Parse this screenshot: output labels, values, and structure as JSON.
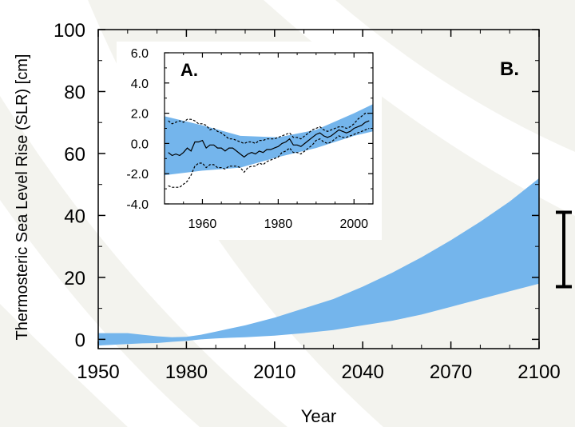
{
  "chart_data": [
    {
      "type": "area",
      "panel_label": "B.",
      "xlabel": "Year",
      "ylabel": "Thermosteric Sea Level Rise (SLR) [cm]",
      "xlim": [
        1950,
        2100
      ],
      "ylim": [
        -3,
        100
      ],
      "x_ticks": [
        1950,
        1980,
        2010,
        2040,
        2070,
        2100
      ],
      "y_ticks": [
        0,
        20,
        40,
        60,
        80,
        100
      ],
      "band_color": "#74b5ec",
      "band": {
        "x": [
          1950,
          1960,
          1965,
          1970,
          1975,
          1980,
          1985,
          1990,
          1995,
          2000,
          2010,
          2020,
          2030,
          2040,
          2050,
          2060,
          2070,
          2080,
          2090,
          2100
        ],
        "upper": [
          2,
          2,
          1.5,
          1,
          0.7,
          0.8,
          1.5,
          2.5,
          3.5,
          4.5,
          7,
          10,
          13,
          17,
          21.5,
          26.5,
          32,
          38,
          44.5,
          52
        ],
        "lower": [
          -2,
          -1.5,
          -1.3,
          -1.2,
          -0.8,
          -0.5,
          0,
          0.3,
          0.5,
          0.7,
          1.2,
          2,
          3,
          4.5,
          6,
          8,
          10.5,
          13,
          15.5,
          18
        ]
      },
      "error_bar": {
        "low": 17,
        "high": 41
      }
    },
    {
      "type": "line",
      "panel_label": "A.",
      "xlim": [
        1950,
        2005
      ],
      "ylim": [
        -4,
        6
      ],
      "x_ticks": [
        1960,
        1980,
        2000
      ],
      "y_ticks": [
        "6.0",
        "4.0",
        "2.0",
        "0.0",
        "-2.0",
        "-4.0"
      ],
      "band_color": "#74b5ec",
      "band": {
        "x": [
          1950,
          1960,
          1970,
          1980,
          1990,
          2000,
          2005
        ],
        "upper": [
          1.8,
          1.2,
          0.5,
          0.4,
          0.9,
          2.0,
          2.6
        ],
        "lower": [
          -2.1,
          -1.8,
          -1.6,
          -0.9,
          -0.3,
          0.5,
          0.8
        ]
      },
      "series": [
        {
          "style": "solid",
          "x": [
            1951,
            1952,
            1953,
            1954,
            1955,
            1956,
            1957,
            1958,
            1959,
            1960,
            1961,
            1962,
            1963,
            1964,
            1965,
            1966,
            1967,
            1968,
            1969,
            1970,
            1971,
            1972,
            1973,
            1974,
            1975,
            1976,
            1977,
            1978,
            1979,
            1980,
            1981,
            1982,
            1983,
            1984,
            1985,
            1986,
            1987,
            1988,
            1989,
            1990,
            1991,
            1992,
            1993,
            1994,
            1995,
            1996,
            1997,
            1998,
            1999,
            2000,
            2001,
            2002,
            2003,
            2004
          ],
          "y": [
            -0.6,
            -0.8,
            -0.7,
            -0.8,
            -0.6,
            -0.3,
            -0.5,
            0.1,
            0.1,
            0.2,
            -0.3,
            -0.1,
            -0.1,
            -0.3,
            -0.3,
            -0.5,
            -0.3,
            -0.3,
            -0.5,
            -0.7,
            -0.9,
            -0.7,
            -0.6,
            -0.7,
            -0.5,
            -0.6,
            -0.4,
            -0.4,
            -0.3,
            -0.2,
            0.0,
            0.1,
            0.3,
            -0.1,
            -0.1,
            -0.2,
            0.0,
            0.2,
            0.4,
            0.6,
            0.7,
            0.5,
            0.4,
            0.5,
            0.7,
            0.9,
            0.8,
            0.7,
            0.8,
            1.0,
            1.1,
            1.2,
            1.4,
            1.5
          ]
        },
        {
          "style": "dashed",
          "x": [
            1951,
            1952,
            1953,
            1954,
            1955,
            1956,
            1957,
            1958,
            1959,
            1960,
            1961,
            1962,
            1963,
            1964,
            1965,
            1966,
            1967,
            1968,
            1969,
            1970,
            1971,
            1972,
            1973,
            1974,
            1975,
            1976,
            1977,
            1978,
            1979,
            1980,
            1981,
            1982,
            1983,
            1984,
            1985,
            1986,
            1987,
            1988,
            1989,
            1990,
            1991,
            1992,
            1993,
            1994,
            1995,
            1996,
            1997,
            1998,
            1999,
            2000,
            2001,
            2002,
            2003,
            2004
          ],
          "y": [
            1.5,
            1.3,
            1.4,
            1.5,
            1.4,
            1.6,
            1.6,
            1.5,
            1.3,
            1.3,
            1.2,
            0.9,
            1.0,
            0.8,
            0.7,
            0.5,
            0.3,
            0.3,
            0.2,
            0.1,
            0.0,
            0.1,
            0.1,
            0.0,
            0.2,
            0.2,
            0.3,
            0.3,
            0.3,
            0.4,
            0.5,
            0.6,
            0.7,
            0.4,
            0.4,
            0.3,
            0.5,
            0.7,
            0.9,
            1.0,
            1.1,
            0.9,
            0.8,
            0.9,
            1.0,
            1.1,
            1.1,
            1.0,
            1.1,
            1.3,
            1.6,
            1.8,
            2.0,
            2.0
          ]
        },
        {
          "style": "dashed",
          "x": [
            1951,
            1952,
            1953,
            1954,
            1955,
            1956,
            1957,
            1958,
            1959,
            1960,
            1961,
            1962,
            1963,
            1964,
            1965,
            1966,
            1967,
            1968,
            1969,
            1970,
            1971,
            1972,
            1973,
            1974,
            1975,
            1976,
            1977,
            1978,
            1979,
            1980,
            1981,
            1982,
            1983,
            1984,
            1985,
            1986,
            1987,
            1988,
            1989,
            1990,
            1991,
            1992,
            1993,
            1994,
            1995,
            1996,
            1997,
            1998,
            1999,
            2000,
            2001,
            2002,
            2003,
            2004
          ],
          "y": [
            -2.8,
            -2.9,
            -2.9,
            -2.9,
            -2.7,
            -2.5,
            -2.1,
            -1.5,
            -1.3,
            -1.3,
            -1.6,
            -1.4,
            -1.4,
            -1.6,
            -1.6,
            -1.7,
            -1.5,
            -1.5,
            -1.5,
            -1.6,
            -1.9,
            -1.6,
            -1.5,
            -1.5,
            -1.3,
            -1.4,
            -1.2,
            -1.1,
            -1.0,
            -0.9,
            -0.6,
            -0.5,
            -0.3,
            -0.6,
            -0.6,
            -0.7,
            -0.5,
            -0.3,
            -0.1,
            0.2,
            0.3,
            0.1,
            0.0,
            0.1,
            0.3,
            0.5,
            0.4,
            0.4,
            0.5,
            0.6,
            0.7,
            0.8,
            0.9,
            1.0
          ]
        }
      ]
    }
  ]
}
